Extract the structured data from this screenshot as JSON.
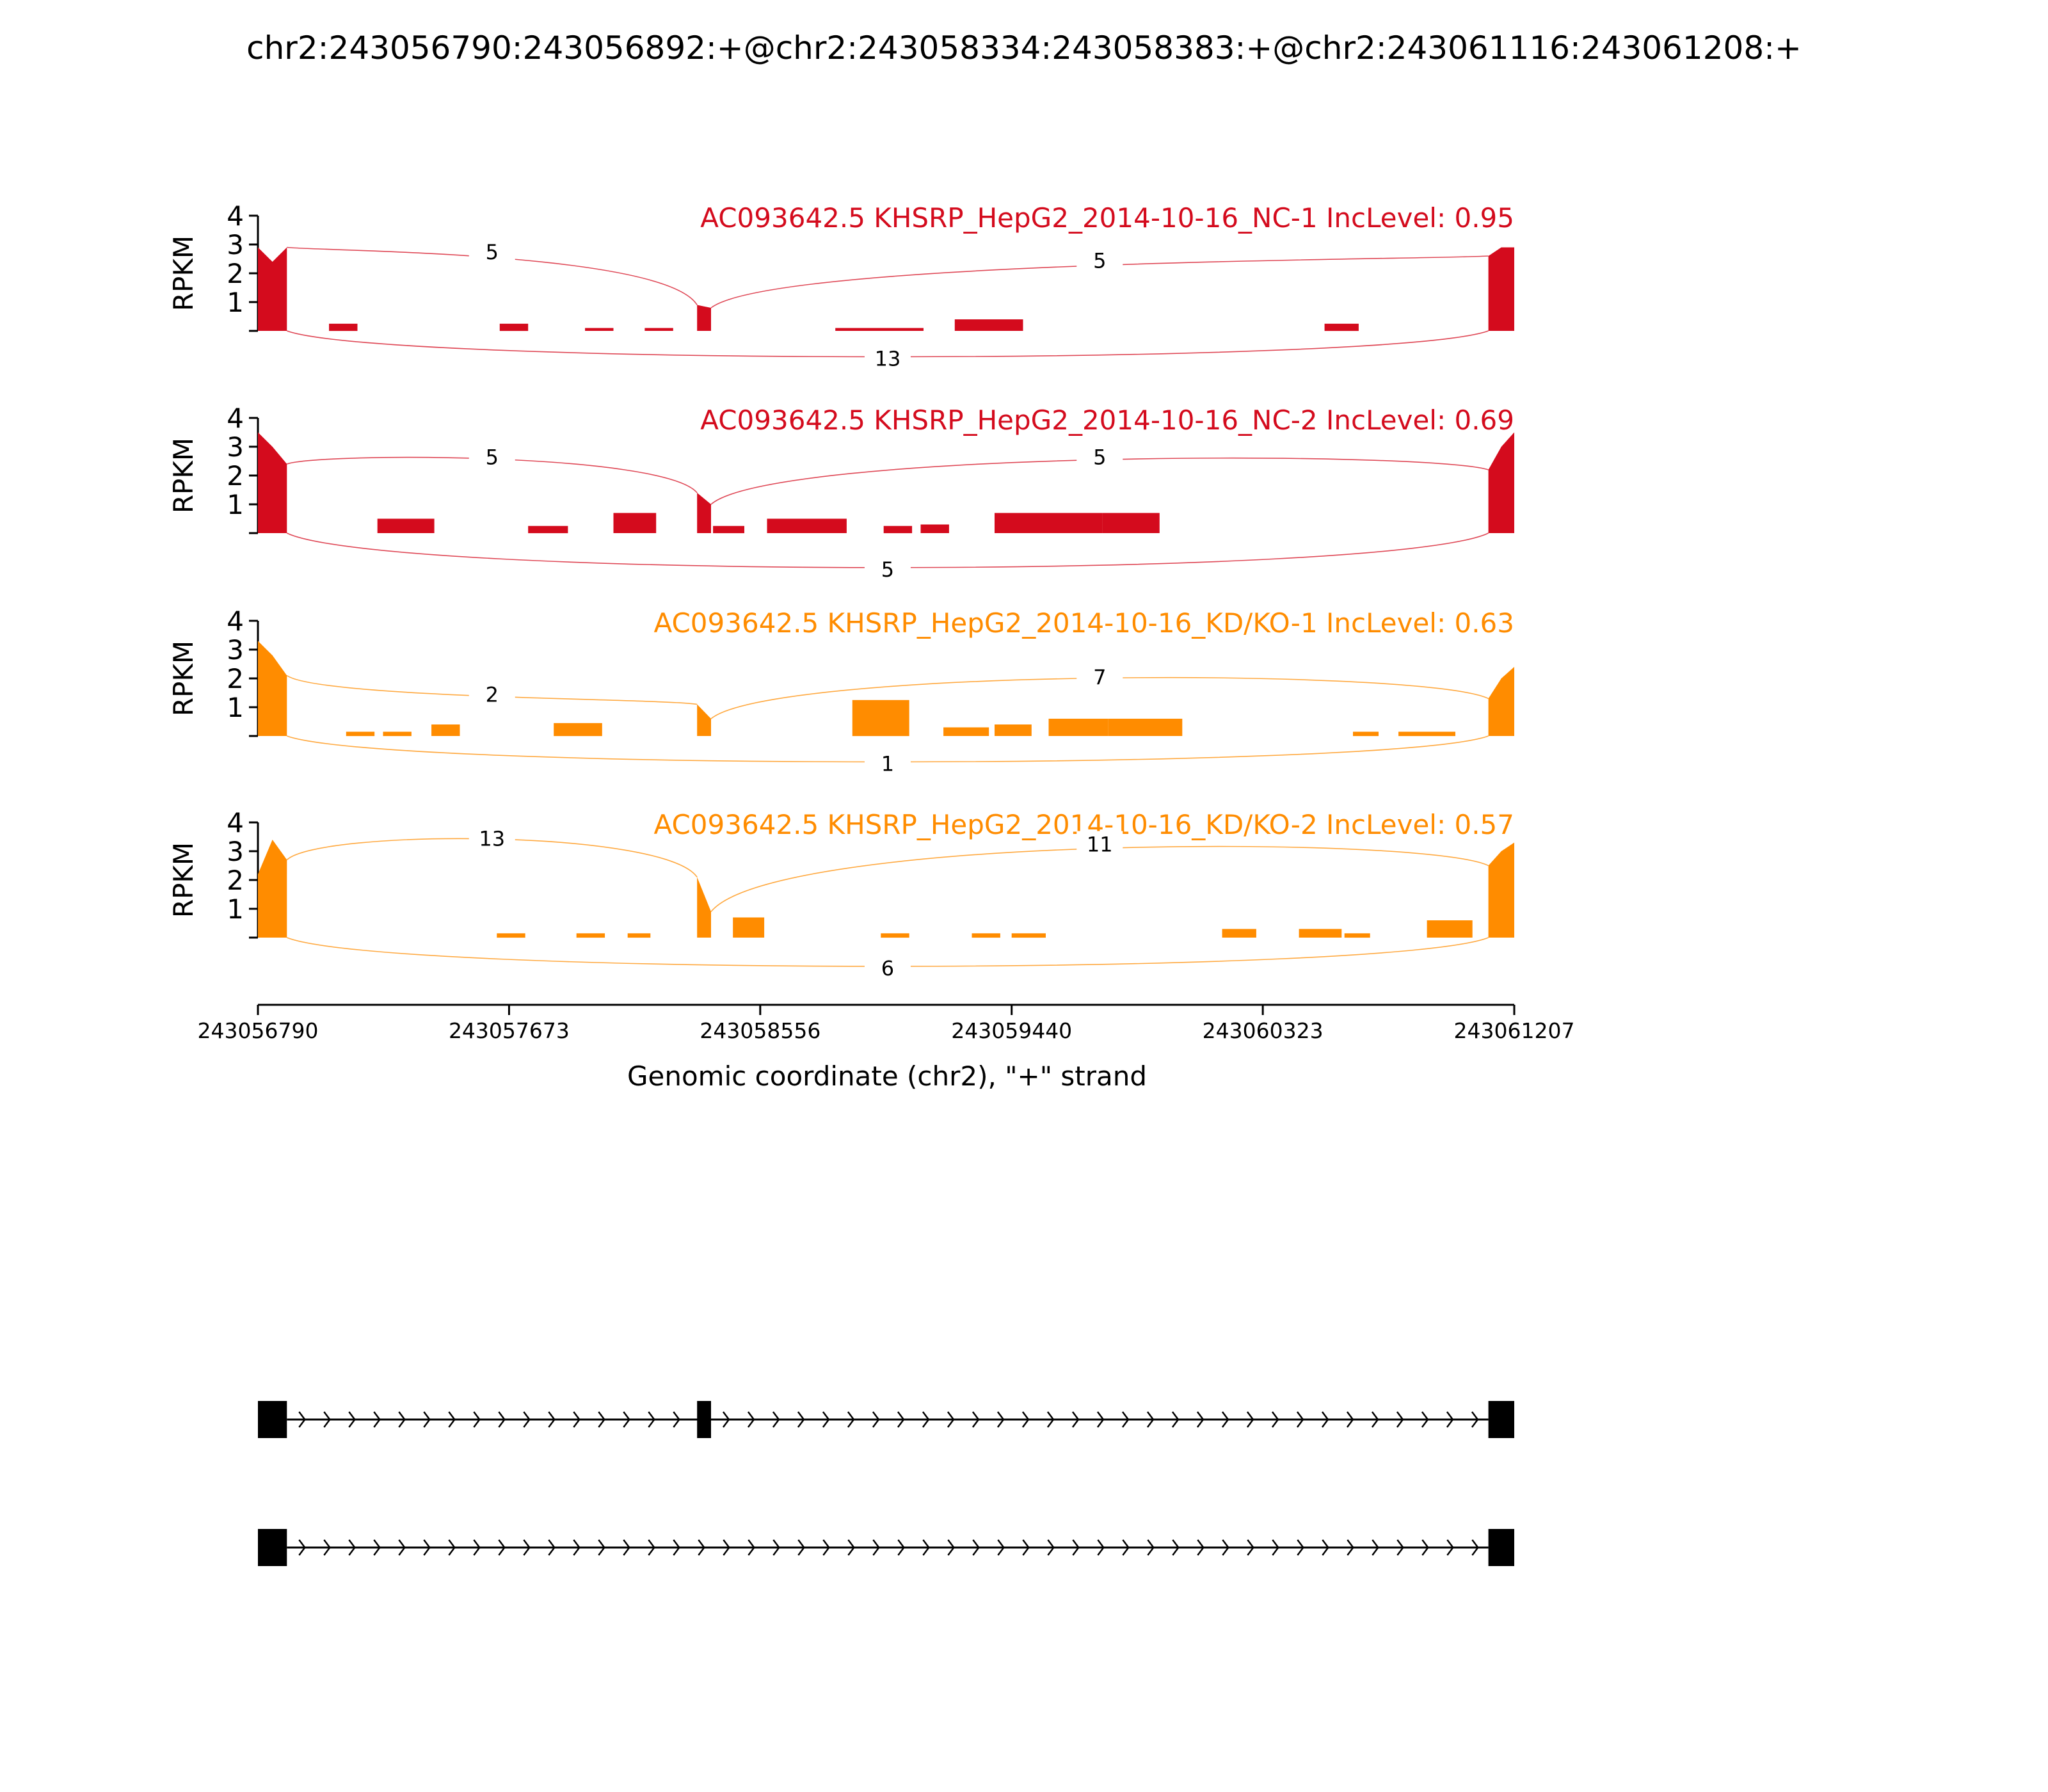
{
  "title": "chr2:243056790:243056892:+@chr2:243058334:243058383:+@chr2:243061116:243061208:+",
  "colors": {
    "nc": "#d40b1d",
    "kd": "#ff8c00",
    "gene": "#000000"
  },
  "chart_data": {
    "type": "sashimi",
    "title": "chr2:243056790:243056892:+@chr2:243058334:243058383:+@chr2:243061116:243061208:+",
    "xlabel": "Genomic coordinate (chr2), \"+\" strand",
    "ylabel": "RPKM",
    "xlim": [
      243056790,
      243061207
    ],
    "ylim": [
      0,
      4
    ],
    "x_ticks": [
      243056790,
      243057673,
      243058556,
      243059440,
      243060323,
      243061207
    ],
    "y_ticks": [
      1,
      2,
      3,
      4
    ],
    "exons": [
      [
        243056790,
        243056892
      ],
      [
        243058334,
        243058383
      ],
      [
        243061116,
        243061207
      ]
    ],
    "isoforms": [
      {
        "exons": [
          [
            243056790,
            243056892
          ],
          [
            243058334,
            243058383
          ],
          [
            243061116,
            243061207
          ]
        ]
      },
      {
        "exons": [
          [
            243056790,
            243056892
          ],
          [
            243061116,
            243061207
          ]
        ]
      }
    ],
    "tracks": [
      {
        "label": "AC093642.5 KHSRP_HepG2_2014-10-16_NC-1 IncLevel: 0.95",
        "color": "nc",
        "exon_coverage": [
          [
            2.9,
            2.4,
            2.9
          ],
          [
            0.9,
            0.8
          ],
          [
            2.6,
            2.9,
            2.9
          ]
        ],
        "intronic_bins": [
          [
            243057040,
            243057140,
            0.25
          ],
          [
            243057640,
            243057740,
            0.25
          ],
          [
            243057940,
            243058040,
            0.1
          ],
          [
            243058150,
            243058250,
            0.1
          ],
          [
            243058820,
            243059130,
            0.1
          ],
          [
            243059240,
            243059480,
            0.4
          ],
          [
            243060540,
            243060660,
            0.25
          ]
        ],
        "junctions": [
          {
            "label": "5",
            "from": 243056892,
            "to": 243058334,
            "side": "top",
            "h": 2.8
          },
          {
            "label": "5",
            "from": 243058383,
            "to": 243061116,
            "side": "top",
            "h": 2.5
          },
          {
            "label": "13",
            "from": 243056892,
            "to": 243061116,
            "side": "bottom",
            "h": 0.9
          }
        ]
      },
      {
        "label": "AC093642.5 KHSRP_HepG2_2014-10-16_NC-2 IncLevel: 0.69",
        "color": "nc",
        "exon_coverage": [
          [
            3.5,
            3.0,
            2.4
          ],
          [
            1.4,
            1.0
          ],
          [
            2.2,
            3.0,
            3.5
          ]
        ],
        "intronic_bins": [
          [
            243057210,
            243057410,
            0.5
          ],
          [
            243057740,
            243057880,
            0.25
          ],
          [
            243058040,
            243058190,
            0.7
          ],
          [
            243058390,
            243058500,
            0.25
          ],
          [
            243058580,
            243058860,
            0.5
          ],
          [
            243058990,
            243059090,
            0.25
          ],
          [
            243059120,
            243059220,
            0.3
          ],
          [
            243059380,
            243059760,
            0.7
          ],
          [
            243059760,
            243059960,
            0.7
          ]
        ],
        "junctions": [
          {
            "label": "5",
            "from": 243056892,
            "to": 243058334,
            "side": "top",
            "h": 2.7
          },
          {
            "label": "5",
            "from": 243058383,
            "to": 243061116,
            "side": "top",
            "h": 2.7
          },
          {
            "label": "5",
            "from": 243056892,
            "to": 243061116,
            "side": "bottom",
            "h": 1.2
          }
        ]
      },
      {
        "label": "AC093642.5 KHSRP_HepG2_2014-10-16_KD/KO-1 IncLevel: 0.63",
        "color": "kd",
        "exon_coverage": [
          [
            3.3,
            2.8,
            2.1
          ],
          [
            1.1,
            0.6
          ],
          [
            1.3,
            2.0,
            2.4
          ]
        ],
        "intronic_bins": [
          [
            243057100,
            243057200,
            0.15
          ],
          [
            243057230,
            243057330,
            0.15
          ],
          [
            243057400,
            243057500,
            0.4
          ],
          [
            243057830,
            243058000,
            0.45
          ],
          [
            243058880,
            243059080,
            1.25
          ],
          [
            243059200,
            243059360,
            0.3
          ],
          [
            243059380,
            243059510,
            0.4
          ],
          [
            243059570,
            243059780,
            0.6
          ],
          [
            243059780,
            243060040,
            0.6
          ],
          [
            243060640,
            243060730,
            0.15
          ],
          [
            243060800,
            243061000,
            0.15
          ]
        ],
        "junctions": [
          {
            "label": "2",
            "from": 243056892,
            "to": 243058334,
            "side": "top",
            "h": 1.5
          },
          {
            "label": "7",
            "from": 243058383,
            "to": 243061116,
            "side": "top",
            "h": 2.1
          },
          {
            "label": "1",
            "from": 243056892,
            "to": 243061116,
            "side": "bottom",
            "h": 0.9
          }
        ]
      },
      {
        "label": "AC093642.5 KHSRP_HepG2_2014-10-16_KD/KO-2 IncLevel: 0.57",
        "color": "kd",
        "exon_coverage": [
          [
            2.2,
            3.4,
            2.7
          ],
          [
            2.1,
            0.9
          ],
          [
            2.5,
            3.0,
            3.3
          ]
        ],
        "intronic_bins": [
          [
            243057630,
            243057730,
            0.15
          ],
          [
            243057910,
            243058010,
            0.15
          ],
          [
            243058090,
            243058170,
            0.15
          ],
          [
            243058460,
            243058570,
            0.7
          ],
          [
            243058980,
            243059080,
            0.15
          ],
          [
            243059300,
            243059400,
            0.15
          ],
          [
            243059440,
            243059560,
            0.15
          ],
          [
            243060180,
            243060300,
            0.3
          ],
          [
            243060450,
            243060600,
            0.3
          ],
          [
            243060610,
            243060700,
            0.15
          ],
          [
            243060900,
            243061060,
            0.6
          ]
        ],
        "junctions": [
          {
            "label": "13",
            "from": 243056892,
            "to": 243058334,
            "side": "top",
            "h": 3.5
          },
          {
            "label": "11",
            "from": 243058383,
            "to": 243061116,
            "side": "top",
            "h": 3.3
          },
          {
            "label": "6",
            "from": 243056892,
            "to": 243061116,
            "side": "bottom",
            "h": 1.0
          }
        ]
      }
    ]
  }
}
